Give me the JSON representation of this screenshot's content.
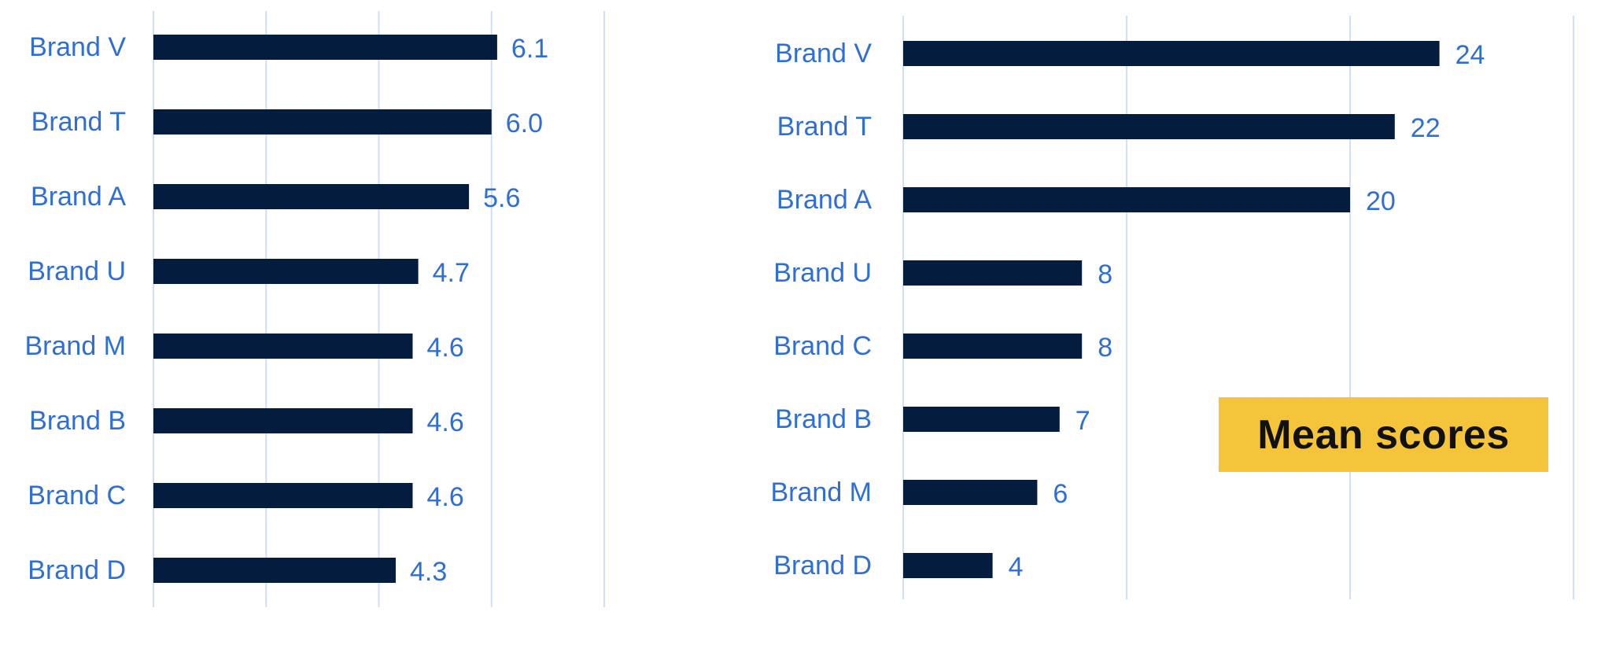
{
  "chart_data": [
    {
      "type": "bar",
      "orientation": "horizontal",
      "categories": [
        "Brand V",
        "Brand T",
        "Brand A",
        "Brand U",
        "Brand M",
        "Brand B",
        "Brand C",
        "Brand D"
      ],
      "values": [
        6.1,
        6.0,
        5.6,
        4.7,
        4.6,
        4.6,
        4.6,
        4.3
      ],
      "value_labels": [
        "6.1",
        "6.0",
        "5.6",
        "4.7",
        "4.6",
        "4.6",
        "4.6",
        "4.3"
      ],
      "xlim": [
        0,
        8
      ],
      "grid": true,
      "colors": {
        "bar": "#041c3d",
        "label": "#2f6fd3",
        "grid": "#cfe0f5"
      }
    },
    {
      "type": "bar",
      "orientation": "horizontal",
      "categories": [
        "Brand V",
        "Brand T",
        "Brand A",
        "Brand U",
        "Brand C",
        "Brand B",
        "Brand M",
        "Brand D"
      ],
      "values": [
        24,
        22,
        20,
        8,
        8,
        7,
        6,
        4
      ],
      "value_labels": [
        "24",
        "22",
        "20",
        "8",
        "8",
        "7",
        "6",
        "4"
      ],
      "xlim": [
        0,
        30
      ],
      "grid": true,
      "colors": {
        "bar": "#041c3d",
        "label": "#2f6fd3",
        "grid": "#cfe0f5"
      }
    }
  ],
  "annotation": {
    "text": "Mean scores",
    "background": "#f4c53a"
  }
}
